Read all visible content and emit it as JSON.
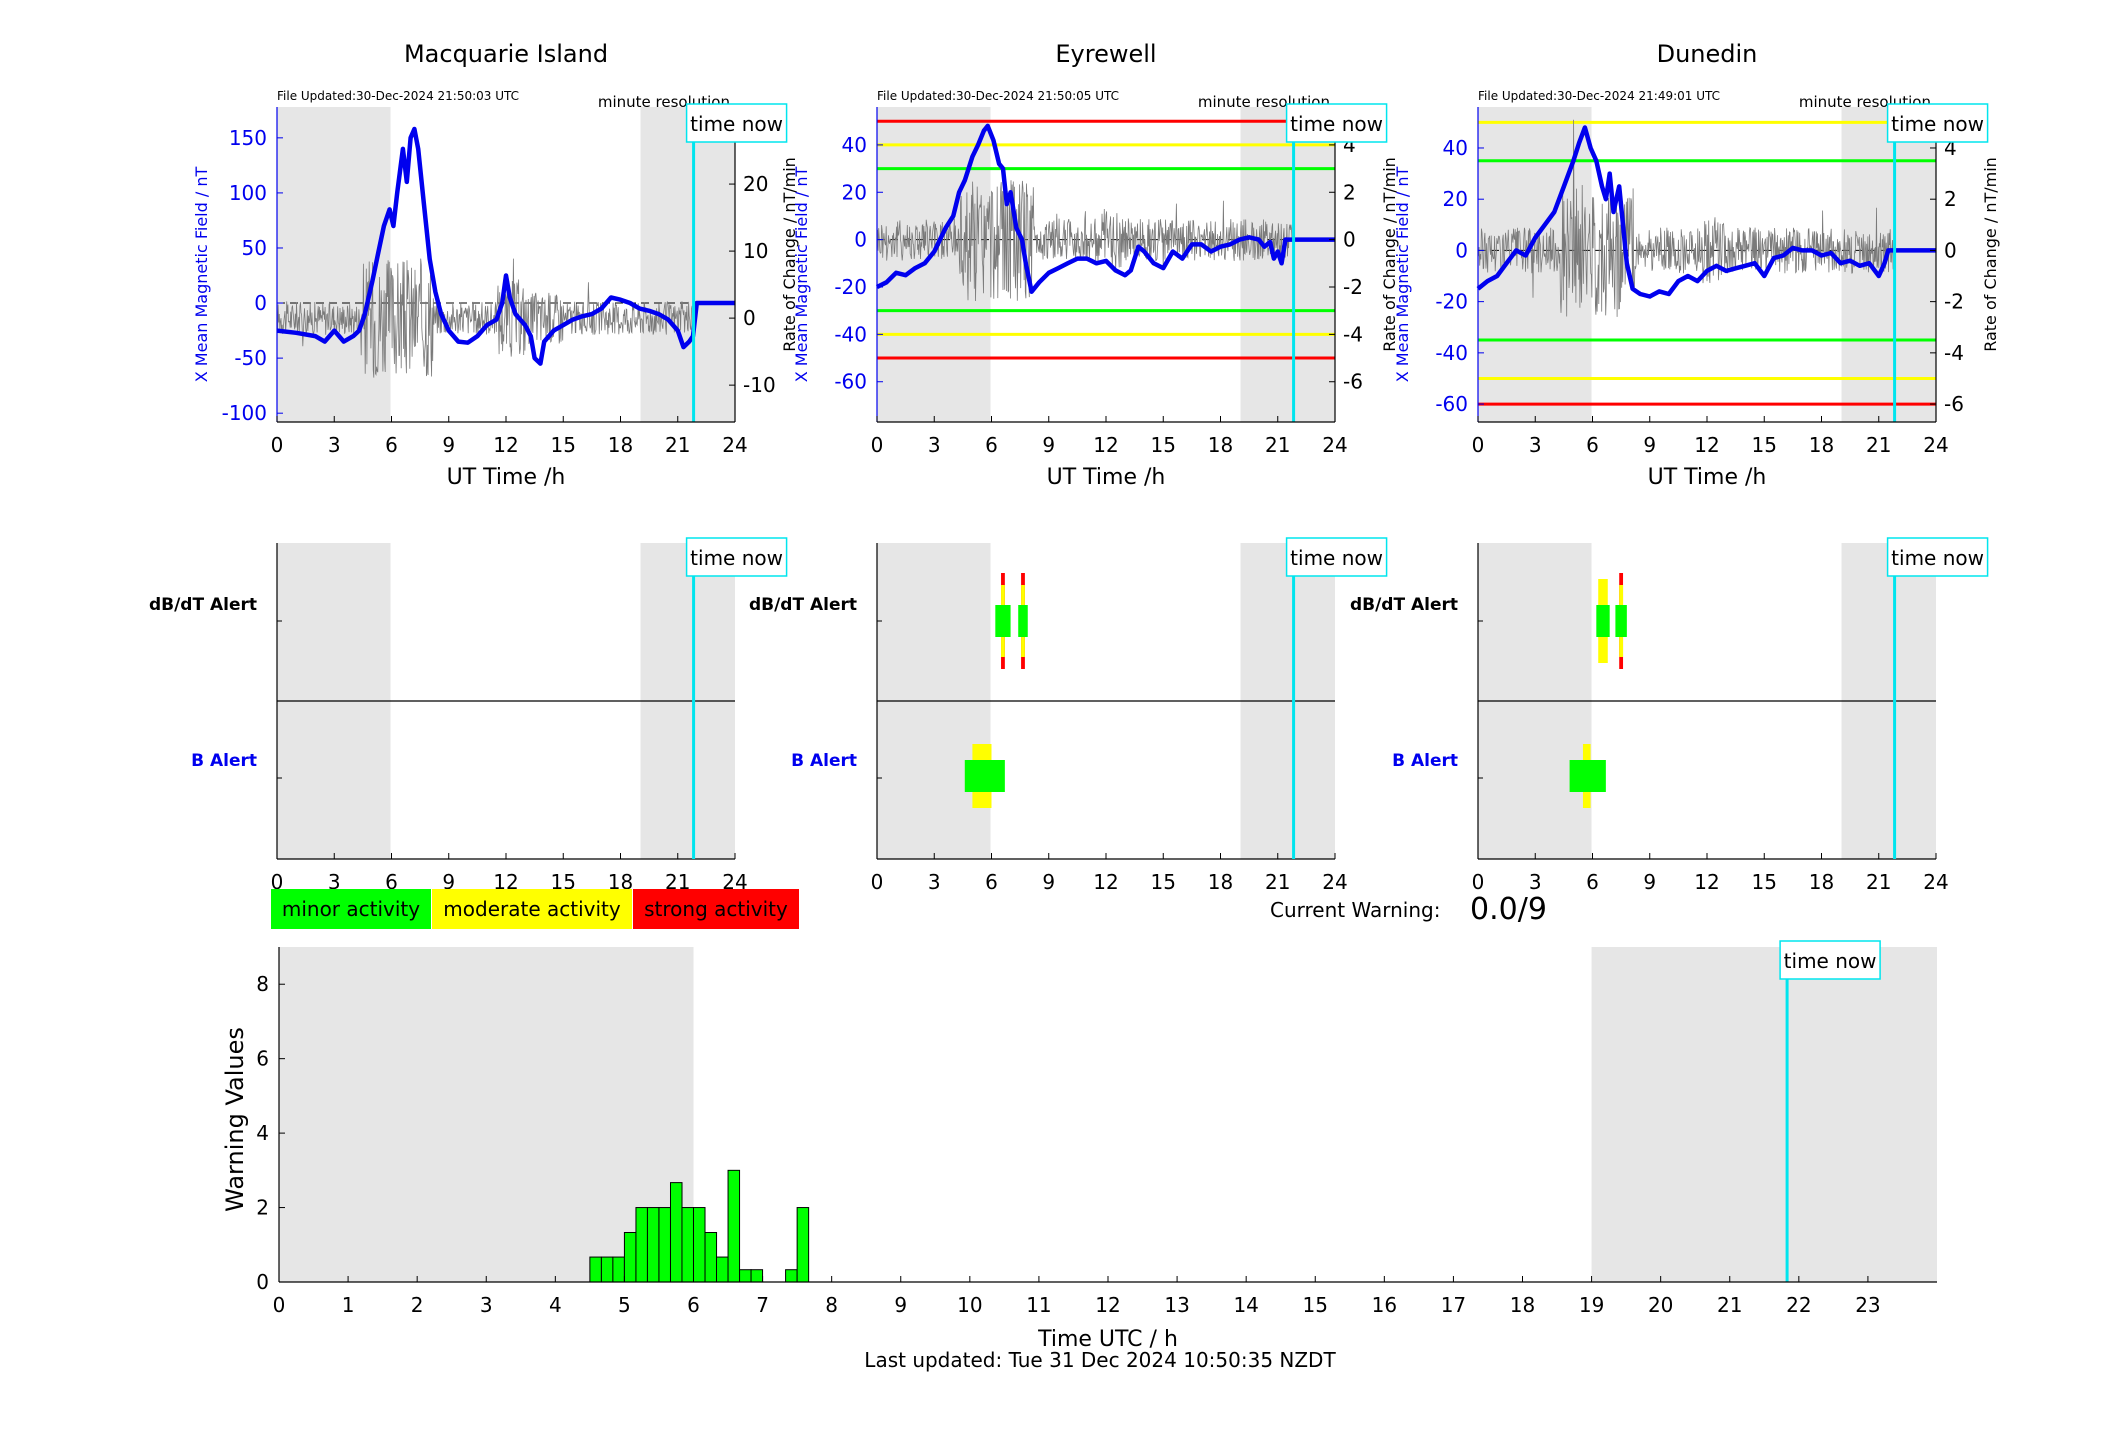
{
  "footer": "Last updated: Tue 31 Dec 2024 10:50:35 NZDT",
  "chart_data": {
    "stations": [
      {
        "name": "Macquarie Island",
        "file_updated": "File Updated:30-Dec-2024 21:50:03 UTC",
        "resolution_label": "minute resolution",
        "time_now_label": "time now",
        "time_now": 21.83,
        "ylabel_left": "X Mean Magnetic Field / nT",
        "ylabel_right": "Rate of Change / nT/min",
        "xlabel": "UT Time /h",
        "ylim_left": [
          -108,
          178
        ],
        "ylim_right": [
          -15.5,
          31.5
        ],
        "yticks_left": [
          -100,
          -50,
          0,
          50,
          100,
          150
        ],
        "yticks_right": [
          -10,
          0,
          10,
          20
        ],
        "xticks": [
          0,
          3,
          6,
          9,
          12,
          15,
          18,
          21,
          24
        ],
        "shaded_regions": [
          [
            0,
            5.95
          ],
          [
            19.05,
            24
          ]
        ],
        "threshold_lines": [],
        "x_field": [
          [
            0,
            -25
          ],
          [
            1,
            -27
          ],
          [
            2,
            -30
          ],
          [
            2.5,
            -35
          ],
          [
            3,
            -25
          ],
          [
            3.5,
            -35
          ],
          [
            4,
            -30
          ],
          [
            4.3,
            -25
          ],
          [
            4.6,
            -10
          ],
          [
            5,
            20
          ],
          [
            5.3,
            45
          ],
          [
            5.6,
            70
          ],
          [
            5.9,
            85
          ],
          [
            6.1,
            70
          ],
          [
            6.3,
            100
          ],
          [
            6.6,
            140
          ],
          [
            6.8,
            110
          ],
          [
            7,
            150
          ],
          [
            7.2,
            158
          ],
          [
            7.4,
            140
          ],
          [
            7.7,
            90
          ],
          [
            8,
            40
          ],
          [
            8.3,
            10
          ],
          [
            8.6,
            -10
          ],
          [
            9,
            -25
          ],
          [
            9.5,
            -35
          ],
          [
            10,
            -36
          ],
          [
            10.5,
            -30
          ],
          [
            11,
            -20
          ],
          [
            11.5,
            -15
          ],
          [
            11.8,
            0
          ],
          [
            12,
            25
          ],
          [
            12.2,
            5
          ],
          [
            12.5,
            -10
          ],
          [
            13,
            -20
          ],
          [
            13.3,
            -30
          ],
          [
            13.5,
            -50
          ],
          [
            13.8,
            -55
          ],
          [
            14,
            -35
          ],
          [
            14.5,
            -25
          ],
          [
            15,
            -20
          ],
          [
            15.5,
            -15
          ],
          [
            16,
            -12
          ],
          [
            16.5,
            -10
          ],
          [
            17,
            -5
          ],
          [
            17.5,
            5
          ],
          [
            18,
            3
          ],
          [
            18.5,
            0
          ],
          [
            19,
            -5
          ],
          [
            19.5,
            -7
          ],
          [
            20,
            -10
          ],
          [
            20.5,
            -15
          ],
          [
            21,
            -25
          ],
          [
            21.3,
            -40
          ],
          [
            21.6,
            -35
          ],
          [
            21.8,
            -30
          ],
          [
            22,
            0
          ],
          [
            24,
            0
          ]
        ],
        "rate_of_change_series": "thin grey trace",
        "alerts": {
          "dbdt_label": "dB/dT Alert",
          "b_label": "B Alert",
          "dbdt": [],
          "b": []
        }
      },
      {
        "name": "Eyrewell",
        "file_updated": "File Updated:30-Dec-2024 21:50:05 UTC",
        "resolution_label": "minute resolution",
        "time_now_label": "time now",
        "time_now": 21.83,
        "ylabel_left": "X Mean Magnetic Field / nT",
        "ylabel_right": "Rate of Change / nT/min",
        "xlabel": "UT Time /h",
        "ylim_left": [
          -77,
          56
        ],
        "ylim_right": [
          -7.7,
          5.6
        ],
        "yticks_left": [
          -60,
          -40,
          -20,
          0,
          20,
          40
        ],
        "yticks_right": [
          -6,
          -4,
          -2,
          0,
          2,
          4
        ],
        "xticks": [
          0,
          3,
          6,
          9,
          12,
          15,
          18,
          21,
          24
        ],
        "shaded_regions": [
          [
            0,
            5.95
          ],
          [
            19.05,
            24
          ]
        ],
        "threshold_lines": [
          {
            "value": 50,
            "color": "#ff0000"
          },
          {
            "value": 40,
            "color": "#ffff00"
          },
          {
            "value": 30,
            "color": "#00ff00"
          },
          {
            "value": -30,
            "color": "#00ff00"
          },
          {
            "value": -40,
            "color": "#ffff00"
          },
          {
            "value": -50,
            "color": "#ff0000"
          }
        ],
        "x_field": [
          [
            0,
            -20
          ],
          [
            0.5,
            -18
          ],
          [
            1,
            -14
          ],
          [
            1.5,
            -15
          ],
          [
            2,
            -12
          ],
          [
            2.5,
            -10
          ],
          [
            3,
            -5
          ],
          [
            3.3,
            0
          ],
          [
            3.6,
            5
          ],
          [
            4,
            10
          ],
          [
            4.3,
            20
          ],
          [
            4.6,
            25
          ],
          [
            5,
            35
          ],
          [
            5.3,
            40
          ],
          [
            5.6,
            46
          ],
          [
            5.8,
            48
          ],
          [
            6.1,
            42
          ],
          [
            6.4,
            32
          ],
          [
            6.6,
            30
          ],
          [
            6.8,
            15
          ],
          [
            7,
            20
          ],
          [
            7.3,
            5
          ],
          [
            7.6,
            0
          ],
          [
            7.8,
            -10
          ],
          [
            8.1,
            -22
          ],
          [
            8.5,
            -18
          ],
          [
            9,
            -14
          ],
          [
            9.5,
            -12
          ],
          [
            10,
            -10
          ],
          [
            10.5,
            -8
          ],
          [
            11,
            -8
          ],
          [
            11.5,
            -10
          ],
          [
            12,
            -9
          ],
          [
            12.5,
            -13
          ],
          [
            13,
            -15
          ],
          [
            13.3,
            -13
          ],
          [
            13.7,
            -3
          ],
          [
            14,
            -5
          ],
          [
            14.5,
            -10
          ],
          [
            15,
            -12
          ],
          [
            15.5,
            -5
          ],
          [
            16,
            -8
          ],
          [
            16.5,
            -2
          ],
          [
            17,
            -2
          ],
          [
            17.5,
            -5
          ],
          [
            18,
            -3
          ],
          [
            18.5,
            -2
          ],
          [
            19,
            0
          ],
          [
            19.5,
            1
          ],
          [
            20,
            0
          ],
          [
            20.3,
            -3
          ],
          [
            20.6,
            -1
          ],
          [
            20.8,
            -8
          ],
          [
            21,
            -5
          ],
          [
            21.2,
            -10
          ],
          [
            21.4,
            0
          ],
          [
            24,
            0
          ]
        ],
        "rate_of_change_series": "thin grey trace",
        "alerts": {
          "dbdt_label": "dB/dT Alert",
          "b_label": "B Alert",
          "dbdt": [
            {
              "x0": 6.2,
              "x1": 7.0,
              "level": "minor"
            },
            {
              "x0": 6.5,
              "x1": 6.7,
              "level": "strong"
            },
            {
              "x0": 7.4,
              "x1": 7.9,
              "level": "minor"
            },
            {
              "x0": 7.55,
              "x1": 7.75,
              "level": "strong"
            }
          ],
          "b": [
            {
              "x0": 4.6,
              "x1": 6.7,
              "level": "minor"
            },
            {
              "x0": 5.0,
              "x1": 6.0,
              "level": "moderate"
            }
          ]
        }
      },
      {
        "name": "Dunedin",
        "file_updated": "File Updated:30-Dec-2024 21:49:01 UTC",
        "resolution_label": "minute resolution",
        "time_now_label": "time now",
        "time_now": 21.83,
        "ylabel_left": "X Mean Magnetic Field / nT",
        "ylabel_right": "Rate of Change / nT/min",
        "xlabel": "UT Time /h",
        "ylim_left": [
          -67,
          56
        ],
        "ylim_right": [
          -6.7,
          5.6
        ],
        "yticks_left": [
          -60,
          -40,
          -20,
          0,
          20,
          40
        ],
        "yticks_right": [
          -6,
          -4,
          -2,
          0,
          2,
          4
        ],
        "xticks": [
          0,
          3,
          6,
          9,
          12,
          15,
          18,
          21,
          24
        ],
        "shaded_regions": [
          [
            0,
            5.95
          ],
          [
            19.05,
            24
          ]
        ],
        "threshold_lines": [
          {
            "value": 50,
            "color": "#ffff00"
          },
          {
            "value": 35,
            "color": "#00ff00"
          },
          {
            "value": -35,
            "color": "#00ff00"
          },
          {
            "value": -50,
            "color": "#ffff00"
          },
          {
            "value": -60,
            "color": "#ff0000"
          }
        ],
        "x_field": [
          [
            0,
            -15
          ],
          [
            0.5,
            -12
          ],
          [
            1,
            -10
          ],
          [
            1.5,
            -5
          ],
          [
            2,
            0
          ],
          [
            2.5,
            -2
          ],
          [
            3,
            5
          ],
          [
            3.5,
            10
          ],
          [
            4,
            15
          ],
          [
            4.5,
            25
          ],
          [
            5,
            35
          ],
          [
            5.3,
            42
          ],
          [
            5.6,
            48
          ],
          [
            5.9,
            40
          ],
          [
            6.2,
            35
          ],
          [
            6.5,
            25
          ],
          [
            6.7,
            20
          ],
          [
            6.9,
            30
          ],
          [
            7.1,
            15
          ],
          [
            7.4,
            25
          ],
          [
            7.6,
            10
          ],
          [
            7.8,
            -5
          ],
          [
            8.1,
            -15
          ],
          [
            8.5,
            -17
          ],
          [
            9,
            -18
          ],
          [
            9.5,
            -16
          ],
          [
            10,
            -17
          ],
          [
            10.5,
            -12
          ],
          [
            11,
            -10
          ],
          [
            11.5,
            -12
          ],
          [
            12,
            -8
          ],
          [
            12.5,
            -6
          ],
          [
            13,
            -8
          ],
          [
            13.5,
            -7
          ],
          [
            14,
            -6
          ],
          [
            14.5,
            -5
          ],
          [
            15,
            -10
          ],
          [
            15.5,
            -3
          ],
          [
            16,
            -2
          ],
          [
            16.5,
            1
          ],
          [
            17,
            0
          ],
          [
            17.5,
            0
          ],
          [
            18,
            -2
          ],
          [
            18.5,
            -1
          ],
          [
            19,
            -5
          ],
          [
            19.5,
            -4
          ],
          [
            20,
            -6
          ],
          [
            20.5,
            -5
          ],
          [
            21,
            -10
          ],
          [
            21.3,
            -5
          ],
          [
            21.5,
            0
          ],
          [
            24,
            0
          ]
        ],
        "rate_of_change_series": "thin grey trace",
        "alerts": {
          "dbdt_label": "dB/dT Alert",
          "b_label": "B Alert",
          "dbdt": [
            {
              "x0": 6.2,
              "x1": 6.9,
              "level": "minor"
            },
            {
              "x0": 6.3,
              "x1": 6.8,
              "level": "moderate"
            },
            {
              "x0": 7.2,
              "x1": 7.8,
              "level": "minor"
            },
            {
              "x0": 7.4,
              "x1": 7.6,
              "level": "strong"
            }
          ],
          "b": [
            {
              "x0": 4.8,
              "x1": 6.7,
              "level": "minor"
            },
            {
              "x0": 5.5,
              "x1": 5.9,
              "level": "moderate"
            }
          ]
        }
      }
    ],
    "legend": [
      {
        "label": "minor activity",
        "color": "#00ff00"
      },
      {
        "label": "moderate activity",
        "color": "#ffff00"
      },
      {
        "label": "strong activity",
        "color": "#ff0000"
      }
    ],
    "current_warning_label": "Current Warning:",
    "current_warning_value": "0.0/9",
    "warning": {
      "type": "bar",
      "ylabel": "Warning Values",
      "xlabel": "Time UTC / h",
      "xlim": [
        0,
        24
      ],
      "ylim": [
        0,
        9
      ],
      "yticks": [
        0,
        2,
        4,
        6,
        8
      ],
      "xticks": [
        0,
        1,
        2,
        3,
        4,
        5,
        6,
        7,
        8,
        9,
        10,
        11,
        12,
        13,
        14,
        15,
        16,
        17,
        18,
        19,
        20,
        21,
        22,
        23
      ],
      "shaded_regions": [
        [
          0,
          6
        ],
        [
          19,
          24
        ]
      ],
      "time_now_label": "time now",
      "time_now": 21.83,
      "bar_width": 0.1667,
      "bar_color": "#00ff00",
      "bars": [
        {
          "x": 4.5,
          "value": 0.67
        },
        {
          "x": 4.667,
          "value": 0.67
        },
        {
          "x": 4.833,
          "value": 0.67
        },
        {
          "x": 5.0,
          "value": 1.33
        },
        {
          "x": 5.167,
          "value": 2.0
        },
        {
          "x": 5.333,
          "value": 2.0
        },
        {
          "x": 5.5,
          "value": 2.0
        },
        {
          "x": 5.667,
          "value": 2.67
        },
        {
          "x": 5.833,
          "value": 2.0
        },
        {
          "x": 6.0,
          "value": 2.0
        },
        {
          "x": 6.167,
          "value": 1.33
        },
        {
          "x": 6.333,
          "value": 0.67
        },
        {
          "x": 6.5,
          "value": 3.0
        },
        {
          "x": 6.667,
          "value": 0.33
        },
        {
          "x": 6.833,
          "value": 0.33
        },
        {
          "x": 7.333,
          "value": 0.33
        },
        {
          "x": 7.5,
          "value": 2.0
        }
      ]
    }
  }
}
